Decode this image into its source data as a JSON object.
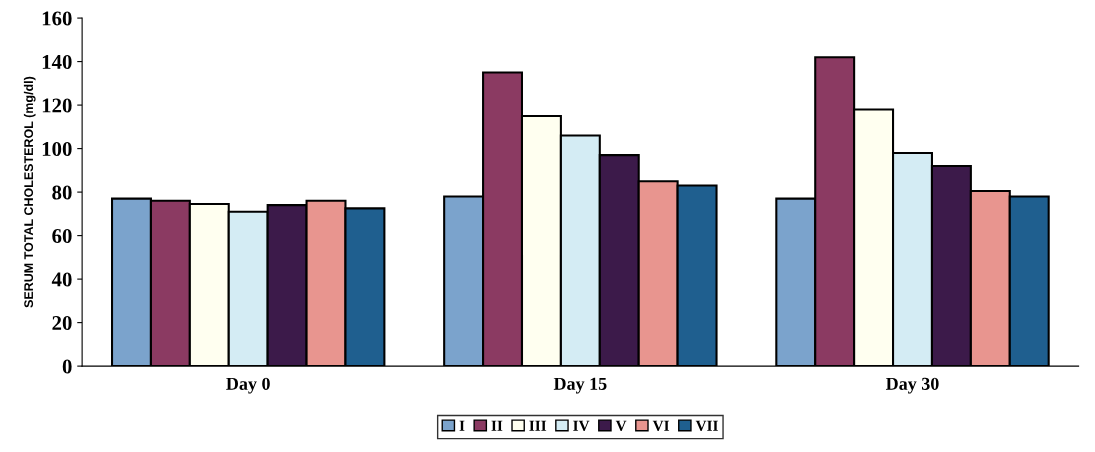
{
  "chart_data": {
    "type": "bar",
    "ylabel": "SERUM TOTAL CHOLESTEROL (mg/dl)",
    "categories": [
      "Day 0",
      "Day 15",
      "Day 30"
    ],
    "series": [
      {
        "name": "I",
        "color": "#7ba3cc",
        "values": [
          77,
          78,
          77
        ]
      },
      {
        "name": "II",
        "color": "#8b3a62",
        "values": [
          76,
          135,
          142
        ]
      },
      {
        "name": "III",
        "color": "#fffff0",
        "values": [
          74.5,
          115,
          118
        ]
      },
      {
        "name": "IV",
        "color": "#d4ecf4",
        "values": [
          71,
          106,
          98
        ]
      },
      {
        "name": "V",
        "color": "#3c1a4a",
        "values": [
          74,
          97,
          92
        ]
      },
      {
        "name": "VI",
        "color": "#e8958f",
        "values": [
          76,
          85,
          80.5
        ]
      },
      {
        "name": "VII",
        "color": "#1f5f8f",
        "values": [
          72.5,
          83,
          78
        ]
      }
    ],
    "ylim": [
      0,
      160
    ],
    "yticks": [
      0,
      20,
      40,
      60,
      80,
      100,
      120,
      140,
      160
    ],
    "grid": false,
    "legend": "bottom"
  }
}
